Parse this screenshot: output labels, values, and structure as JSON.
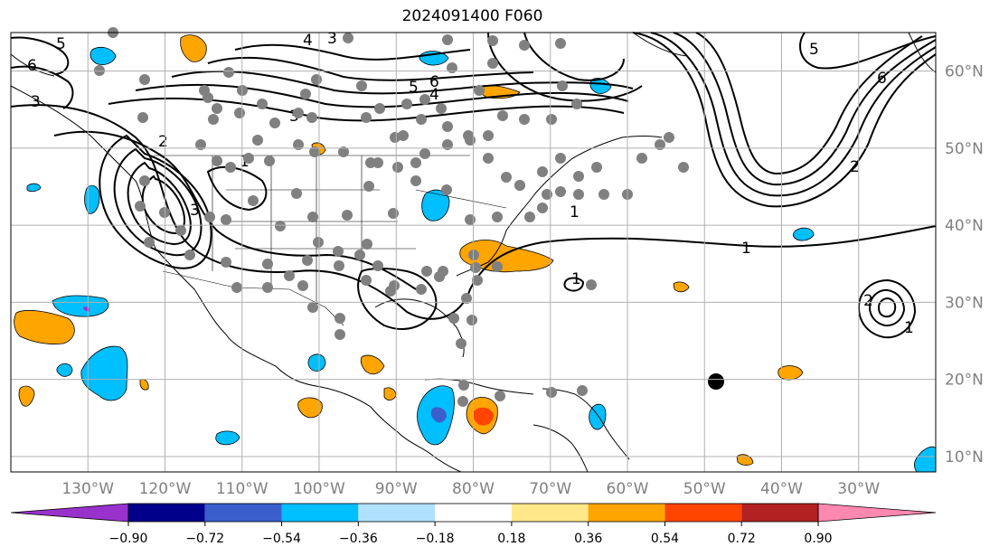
{
  "title": "2024091400 F060",
  "map": {
    "lon_range": [
      -140,
      -20
    ],
    "lat_range": [
      8,
      65
    ],
    "lon_ticks": [
      {
        "value": -130,
        "label": "130°W"
      },
      {
        "value": -120,
        "label": "120°W"
      },
      {
        "value": -110,
        "label": "110°W"
      },
      {
        "value": -100,
        "label": "100°W"
      },
      {
        "value": -90,
        "label": "90°W"
      },
      {
        "value": -80,
        "label": "80°W"
      },
      {
        "value": -70,
        "label": "70°W"
      },
      {
        "value": -60,
        "label": "60°W"
      },
      {
        "value": -50,
        "label": "50°W"
      },
      {
        "value": -40,
        "label": "40°W"
      },
      {
        "value": -30,
        "label": "30°W"
      }
    ],
    "lat_ticks": [
      {
        "value": 10,
        "label": "10°N"
      },
      {
        "value": 20,
        "label": "20°N"
      },
      {
        "value": 30,
        "label": "30°N"
      },
      {
        "value": 40,
        "label": "40°N"
      },
      {
        "value": 50,
        "label": "50°N"
      },
      {
        "value": 60,
        "label": "60°N"
      }
    ],
    "grid": true
  },
  "colorbar": {
    "ticks": [
      "−0.90",
      "−0.72",
      "−0.54",
      "−0.36",
      "−0.18",
      "0.18",
      "0.36",
      "0.54",
      "0.72",
      "0.90"
    ],
    "colors": [
      "#9932cc",
      "#00008b",
      "#3a5fcd",
      "#00bfff",
      "#b0e2ff",
      "#ffffff",
      "#ffe88a",
      "#ffa500",
      "#ff4500",
      "#b22222",
      "#ff88b0"
    ]
  },
  "contour_labels": [
    "1",
    "2",
    "3",
    "4",
    "5",
    "6"
  ],
  "colors": {
    "grid": "#b0b0b0",
    "contour": "#000000",
    "station": "#808080",
    "marker": "#000000"
  }
}
